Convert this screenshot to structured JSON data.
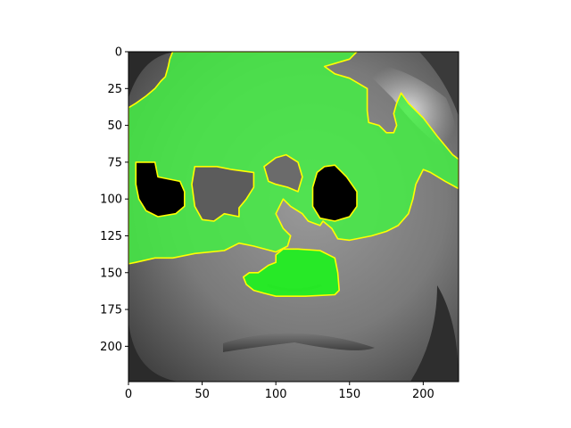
{
  "chart_data": {
    "type": "heatmap",
    "title": "",
    "xlabel": "",
    "ylabel": "",
    "xlim": [
      0,
      224
    ],
    "ylim": [
      224,
      0
    ],
    "xticks": [
      0,
      50,
      100,
      150,
      200
    ],
    "yticks": [
      0,
      25,
      50,
      75,
      100,
      125,
      150,
      175,
      200
    ],
    "grid": false,
    "colors": {
      "overlay": "#33ee33",
      "contour": "#ffff00",
      "background_dark": "#1a1a1a",
      "background_light": "#a0a0a0"
    }
  }
}
